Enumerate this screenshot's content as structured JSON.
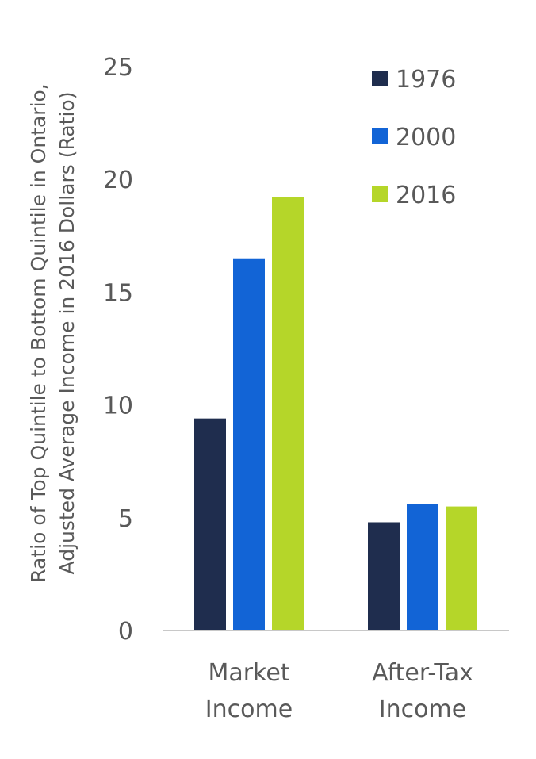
{
  "chart_data": {
    "type": "bar",
    "title": "",
    "categories": [
      [
        "Market",
        "Income"
      ],
      [
        "After-Tax",
        "Income"
      ]
    ],
    "series": [
      {
        "name": "1976",
        "color": "#1f2d4e",
        "values": [
          9.4,
          4.8
        ]
      },
      {
        "name": "2000",
        "color": "#1264d6",
        "values": [
          16.5,
          5.6
        ]
      },
      {
        "name": "2016",
        "color": "#b5d629",
        "values": [
          19.2,
          5.5
        ]
      }
    ],
    "ylabel": [
      "Ratio of Top Quintile to Bottom Quintile in Ontario,",
      "Adjusted Average Income in 2016 Dollars (Ratio)"
    ],
    "xlabel": "",
    "ylim": [
      0,
      25
    ],
    "yticks": [
      0,
      5,
      10,
      15,
      20,
      25
    ],
    "grid": false,
    "legend": "top-right"
  }
}
